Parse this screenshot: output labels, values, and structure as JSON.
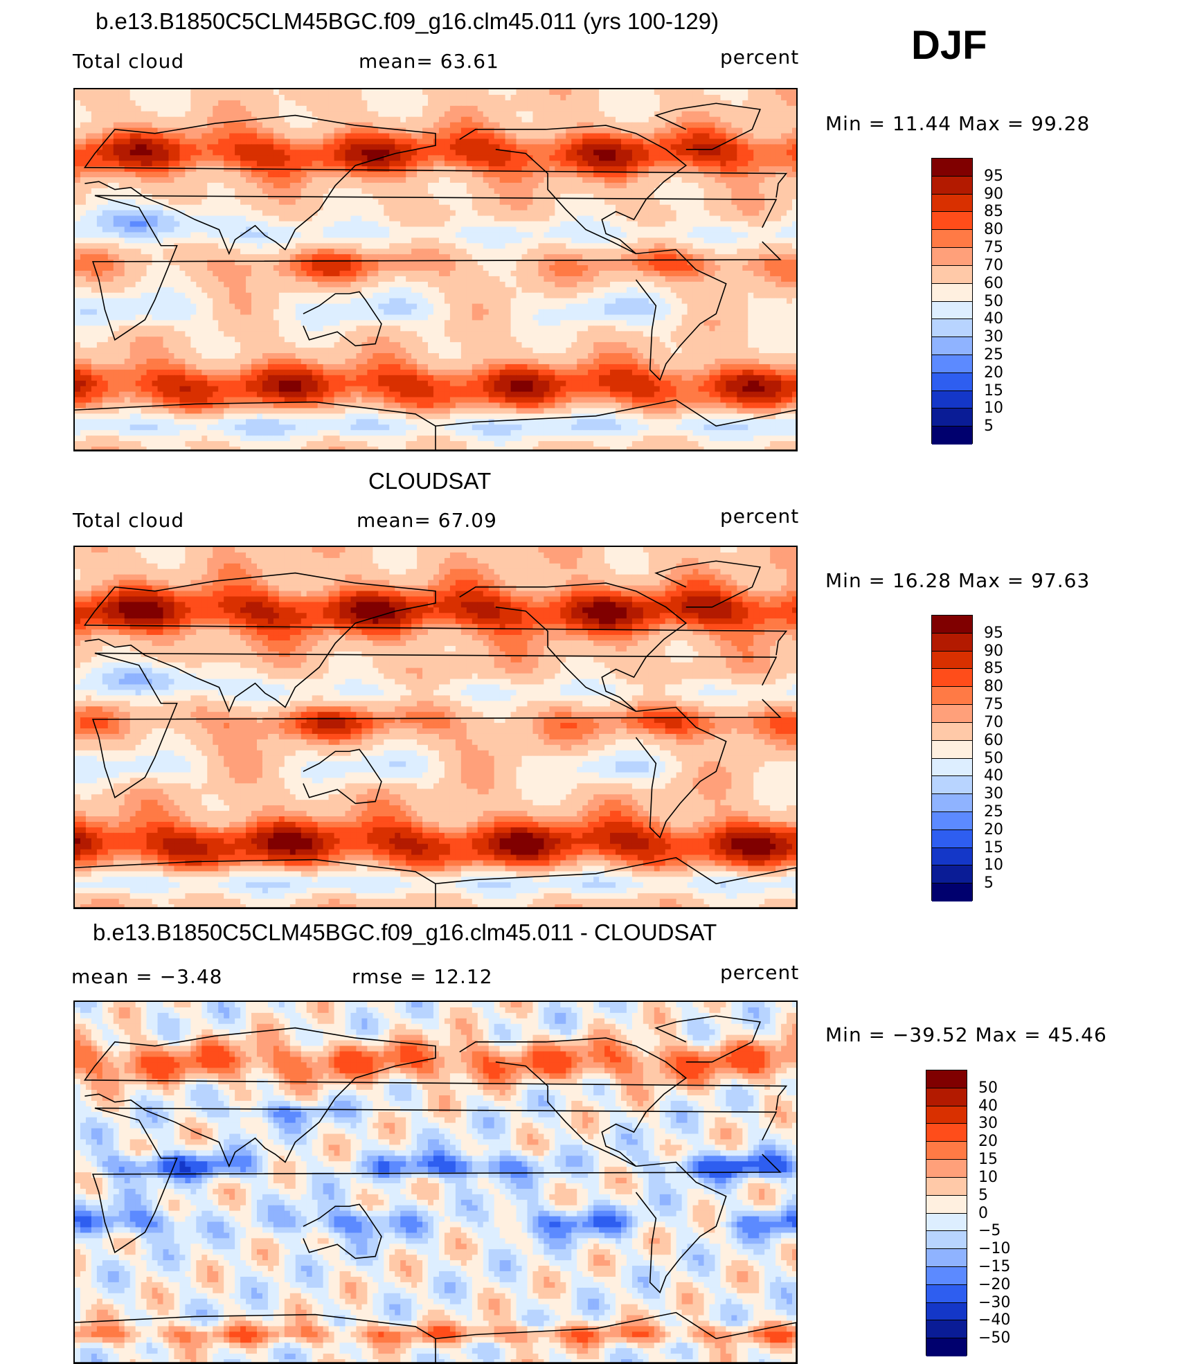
{
  "season": "DJF",
  "panels": [
    {
      "id": "model",
      "title": "b.e13.B1850C5CLM45BGC.f09_g16.clm45.011 (yrs 100-129)",
      "left_label": "Total cloud",
      "mid_label": "mean=   63.61",
      "right_label": "percent",
      "minmax": "Min  =    11.44  Max  =    99.28",
      "colorbar_type": "abs",
      "field_bias": 0
    },
    {
      "id": "obs",
      "title": "CLOUDSAT",
      "left_label": "Total cloud",
      "mid_label": "mean=   67.09",
      "right_label": "percent",
      "minmax": "Min  =    16.28  Max  =    97.63",
      "colorbar_type": "abs",
      "field_bias": 3
    },
    {
      "id": "diff",
      "title": "b.e13.B1850C5CLM45BGC.f09_g16.clm45.011 - CLOUDSAT",
      "left_label": "mean  =    −3.48",
      "mid_label": "rmse  =    12.12",
      "right_label": "percent",
      "minmax": "Min  = −39.52  Max  =    45.46",
      "colorbar_type": "diff",
      "field_bias": 0
    }
  ],
  "colorbars": {
    "abs": {
      "labels": [
        "95",
        "90",
        "85",
        "80",
        "75",
        "70",
        "60",
        "50",
        "40",
        "30",
        "25",
        "20",
        "15",
        "10",
        "5"
      ],
      "colors": [
        "#800000",
        "#b31a00",
        "#d93000",
        "#ff4d1a",
        "#ff7a45",
        "#ffa07a",
        "#ffc9a8",
        "#fff0e0",
        "#ddeeff",
        "#b8d4ff",
        "#8fb3ff",
        "#5c8aff",
        "#2e5ef0",
        "#1437c8",
        "#0a1c96",
        "#00006e"
      ]
    },
    "diff": {
      "labels": [
        "50",
        "40",
        "30",
        "20",
        "15",
        "10",
        "5",
        "0",
        "−5",
        "−10",
        "−15",
        "−20",
        "−30",
        "−40",
        "−50"
      ],
      "colors": [
        "#800000",
        "#b31a00",
        "#d93000",
        "#ff4d1a",
        "#ff7a45",
        "#ffa07a",
        "#ffc9a8",
        "#fff0e0",
        "#ddeeff",
        "#b8d4ff",
        "#8fb3ff",
        "#5c8aff",
        "#2e5ef0",
        "#1437c8",
        "#0a1c96",
        "#00006e"
      ]
    }
  }
}
